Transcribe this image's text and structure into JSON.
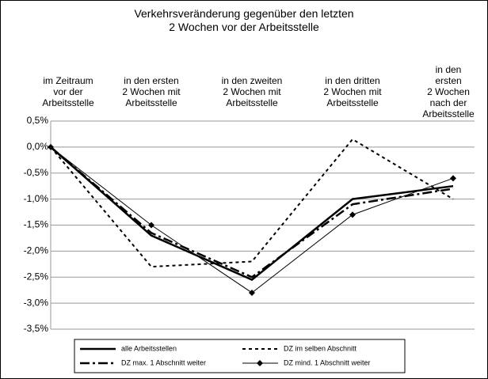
{
  "chart_data": {
    "type": "line",
    "title": "Verkehrsveränderung gegenüber den letzten\n2 Wochen vor der Arbeitsstelle",
    "categories": [
      "im Zeitraum\nvor der\nArbeitsstelle",
      "in den ersten\n2 Wochen mit\nArbeitsstelle",
      "in den zweiten\n2 Wochen mit\nArbeitsstelle",
      "in den dritten\n2 Wochen mit\nArbeitsstelle",
      "in den ersten\n2 Wochen\nnach der\nArbeitsstelle"
    ],
    "series": [
      {
        "name": "alle Arbeitsstellen",
        "color": "#000000",
        "linestyle": "solid",
        "linewidth": 2.5,
        "values": [
          0,
          -1.7,
          -2.55,
          -1.0,
          -0.75
        ]
      },
      {
        "name": "DZ im selben Abschnitt",
        "color": "#000000",
        "linestyle": "dotted",
        "linewidth": 2,
        "values": [
          0,
          -2.3,
          -2.2,
          0.15,
          -1.0
        ]
      },
      {
        "name": "DZ max. 1 Abschnitt weiter",
        "color": "#000000",
        "linestyle": "dashdot",
        "linewidth": 2.5,
        "values": [
          0,
          -1.65,
          -2.5,
          -1.1,
          -0.8
        ]
      },
      {
        "name": "DZ mind. 1 Abschnitt weiter",
        "color": "#000000",
        "linestyle": "solid",
        "linewidth": 1,
        "marker": "diamond",
        "values": [
          0,
          -1.5,
          -2.8,
          -1.3,
          -0.6
        ]
      }
    ],
    "ylim": [
      -3.5,
      0.5
    ],
    "yticks": [
      {
        "value": 0.5,
        "label": "0,5%"
      },
      {
        "value": 0,
        "label": "0,0%"
      },
      {
        "value": -0.5,
        "label": "-0,5%"
      },
      {
        "value": -1,
        "label": "-1,0%"
      },
      {
        "value": -1.5,
        "label": "-1,5%"
      },
      {
        "value": -2,
        "label": "-2,0%"
      },
      {
        "value": -2.5,
        "label": "-2,5%"
      },
      {
        "value": -3,
        "label": "-3,0%"
      },
      {
        "value": -3.5,
        "label": "-3,5%"
      }
    ],
    "grid": true
  }
}
